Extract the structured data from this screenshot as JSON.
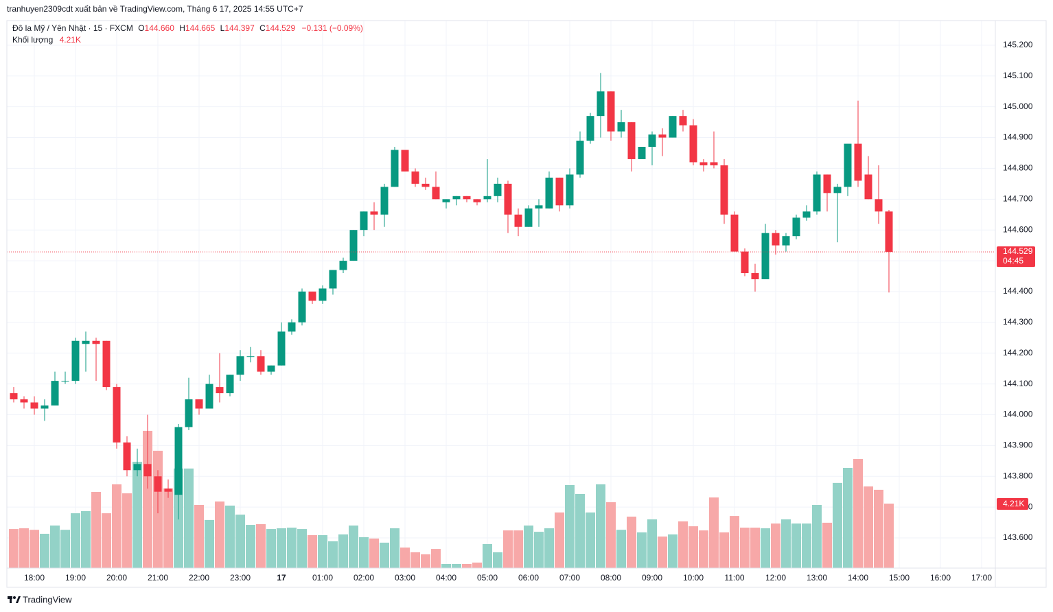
{
  "header": {
    "title": "tranhuyen2309cdt xuất bản về TradingView.com, Tháng 6 17, 2025 14:55 UTC+7",
    "symbol": "Đô la Mỹ / Yên Nhật · 15 · FXCM",
    "ohlc": [
      {
        "key": "O",
        "value": "144.660"
      },
      {
        "key": "H",
        "value": "144.665"
      },
      {
        "key": "L",
        "value": "144.397"
      },
      {
        "key": "C",
        "value": "144.529"
      }
    ],
    "change": "−0.131 (−0.09%)",
    "volume_title": "Khối lượng",
    "volume_value": "4.21K"
  },
  "footer": {
    "brand": "TradingView"
  },
  "chart_data": {
    "type": "candlestick",
    "x": [
      17.5,
      17.75,
      18,
      18.25,
      18.5,
      18.75,
      19,
      19.25,
      19.5,
      19.75,
      20,
      20.25,
      20.5,
      20.75,
      21,
      21.25,
      21.5,
      21.75,
      22,
      22.25,
      22.5,
      22.75,
      23,
      23.25,
      23.5,
      23.75,
      24,
      24.25,
      24.5,
      24.75,
      25,
      25.25,
      25.5,
      25.75,
      26,
      26.25,
      26.5,
      26.75,
      27,
      27.25,
      27.5,
      27.75,
      28,
      28.25,
      28.5,
      28.75,
      29,
      29.25,
      29.5,
      29.75,
      30,
      30.25,
      30.5,
      30.75,
      31,
      31.25,
      31.5,
      31.75,
      32,
      32.25,
      32.5,
      32.75,
      33,
      33.25,
      33.5,
      33.75,
      34,
      34.25,
      34.5,
      34.75,
      35,
      35.25,
      35.5,
      35.75,
      36,
      36.25,
      36.5,
      36.75,
      37,
      37.25,
      37.5,
      37.75,
      38,
      38.25,
      38.5,
      38.75
    ],
    "open": [
      144.07,
      144.05,
      144.04,
      144.02,
      144.03,
      144.11,
      144.11,
      144.23,
      144.24,
      144.24,
      144.09,
      143.91,
      143.82,
      143.84,
      143.8,
      143.76,
      143.74,
      143.96,
      144.05,
      144.02,
      144.09,
      144.07,
      144.13,
      144.19,
      144.19,
      144.14,
      144.16,
      144.27,
      144.3,
      144.4,
      144.37,
      144.41,
      144.47,
      144.5,
      144.6,
      144.66,
      144.65,
      144.74,
      144.86,
      144.79,
      144.75,
      144.74,
      144.69,
      144.7,
      144.71,
      144.7,
      144.7,
      144.71,
      144.75,
      144.65,
      144.61,
      144.67,
      144.67,
      144.77,
      144.68,
      144.78,
      144.89,
      144.97,
      145.05,
      144.92,
      144.95,
      144.83,
      144.87,
      144.91,
      144.9,
      144.97,
      144.94,
      144.82,
      144.82,
      144.81,
      144.65,
      144.53,
      144.46,
      144.44,
      144.59,
      144.55,
      144.58,
      144.64,
      144.66,
      144.78,
      144.72,
      144.74,
      144.88,
      144.78,
      144.7,
      144.66
    ],
    "high": [
      144.09,
      144.06,
      144.06,
      144.05,
      144.14,
      144.14,
      144.25,
      144.27,
      144.25,
      144.24,
      144.1,
      143.93,
      143.89,
      144.0,
      143.82,
      143.79,
      143.97,
      144.12,
      144.05,
      144.13,
      144.2,
      144.13,
      144.21,
      144.22,
      144.21,
      144.16,
      144.3,
      144.31,
      144.41,
      144.4,
      144.42,
      144.47,
      144.51,
      144.6,
      144.66,
      144.69,
      144.75,
      144.87,
      144.86,
      144.8,
      144.77,
      144.79,
      144.7,
      144.71,
      144.71,
      144.7,
      144.83,
      144.77,
      144.76,
      144.67,
      144.68,
      144.7,
      144.79,
      144.77,
      144.8,
      144.92,
      144.98,
      145.11,
      145.05,
      144.99,
      144.95,
      144.87,
      144.92,
      144.93,
      144.97,
      144.99,
      144.96,
      144.83,
      144.92,
      144.83,
      144.66,
      144.54,
      144.49,
      144.62,
      144.6,
      144.59,
      144.65,
      144.68,
      144.79,
      144.78,
      144.75,
      144.88,
      145.02,
      144.84,
      144.81,
      144.665
    ],
    "low": [
      144.04,
      144.02,
      144.0,
      143.98,
      144.03,
      144.1,
      144.1,
      144.14,
      144.11,
      144.08,
      143.89,
      143.8,
      143.8,
      143.76,
      143.68,
      143.73,
      143.66,
      143.95,
      144.0,
      144.02,
      144.04,
      144.06,
      144.11,
      144.17,
      144.13,
      144.13,
      144.16,
      144.26,
      144.29,
      144.36,
      144.36,
      144.39,
      144.46,
      144.5,
      144.58,
      144.6,
      144.61,
      144.74,
      144.79,
      144.74,
      144.73,
      144.7,
      144.67,
      144.68,
      144.69,
      144.68,
      144.69,
      144.69,
      144.59,
      144.58,
      144.61,
      144.61,
      144.67,
      144.66,
      144.67,
      144.77,
      144.88,
      144.9,
      144.89,
      144.9,
      144.79,
      144.83,
      144.81,
      144.84,
      144.9,
      144.92,
      144.81,
      144.79,
      144.8,
      144.62,
      144.53,
      144.45,
      144.4,
      144.44,
      144.52,
      144.53,
      144.57,
      144.63,
      144.65,
      144.66,
      144.56,
      144.71,
      144.74,
      144.7,
      144.62,
      144.397
    ],
    "close": [
      144.05,
      144.04,
      144.02,
      144.03,
      144.11,
      144.11,
      144.24,
      144.24,
      144.23,
      144.09,
      143.91,
      143.82,
      143.84,
      143.8,
      143.75,
      143.75,
      143.96,
      144.05,
      144.02,
      144.1,
      144.07,
      144.13,
      144.19,
      144.19,
      144.14,
      144.16,
      144.27,
      144.3,
      144.4,
      144.37,
      144.41,
      144.47,
      144.5,
      144.6,
      144.66,
      144.65,
      144.74,
      144.86,
      144.79,
      144.75,
      144.74,
      144.7,
      144.7,
      144.71,
      144.7,
      144.69,
      144.71,
      144.75,
      144.65,
      144.61,
      144.67,
      144.68,
      144.77,
      144.68,
      144.78,
      144.89,
      144.97,
      145.05,
      144.92,
      144.95,
      144.83,
      144.87,
      144.91,
      144.9,
      144.97,
      144.94,
      144.82,
      144.81,
      144.81,
      144.65,
      144.53,
      144.46,
      144.44,
      144.59,
      144.55,
      144.58,
      144.64,
      144.66,
      144.78,
      144.72,
      144.74,
      144.88,
      144.76,
      144.7,
      144.66,
      144.529
    ],
    "volume": [
      2550,
      2600,
      2500,
      2240,
      2780,
      2500,
      3580,
      3720,
      4970,
      3580,
      5470,
      4880,
      6940,
      8960,
      7660,
      5200,
      6500,
      6500,
      4120,
      3140,
      4350,
      4080,
      3490,
      2820,
      2870,
      2550,
      2600,
      2640,
      2550,
      2150,
      2150,
      1750,
      2200,
      2780,
      2020,
      1930,
      1660,
      2600,
      1340,
      1030,
      900,
      1250,
      270,
      270,
      270,
      360,
      1570,
      1030,
      2460,
      2460,
      2780,
      2370,
      2600,
      3630,
      5420,
      4840,
      3630,
      5470,
      4300,
      2500,
      3360,
      2330,
      3180,
      2060,
      2200,
      3050,
      2730,
      2460,
      4610,
      2330,
      3400,
      2640,
      2640,
      2600,
      2910,
      3180,
      2910,
      2910,
      4120,
      2960,
      5560,
      6540,
      7120,
      5330,
      5110,
      4210
    ],
    "xlim": [
      17.3333,
      41.3333
    ],
    "xticks": [
      {
        "value": 18,
        "label": "18:00"
      },
      {
        "value": 19,
        "label": "19:00"
      },
      {
        "value": 20,
        "label": "20:00"
      },
      {
        "value": 21,
        "label": "21:00"
      },
      {
        "value": 22,
        "label": "22:00"
      },
      {
        "value": 23,
        "label": "23:00"
      },
      {
        "value": 24,
        "label": "17"
      },
      {
        "value": 25,
        "label": "01:00"
      },
      {
        "value": 26,
        "label": "02:00"
      },
      {
        "value": 27,
        "label": "03:00"
      },
      {
        "value": 28,
        "label": "04:00"
      },
      {
        "value": 29,
        "label": "05:00"
      },
      {
        "value": 30,
        "label": "06:00"
      },
      {
        "value": 31,
        "label": "07:00"
      },
      {
        "value": 32,
        "label": "08:00"
      },
      {
        "value": 33,
        "label": "09:00"
      },
      {
        "value": 34,
        "label": "10:00"
      },
      {
        "value": 35,
        "label": "11:00"
      },
      {
        "value": 36,
        "label": "12:00"
      },
      {
        "value": 37,
        "label": "13:00"
      },
      {
        "value": 38,
        "label": "14:00"
      },
      {
        "value": 39,
        "label": "15:00"
      },
      {
        "value": 40,
        "label": "16:00"
      },
      {
        "value": 41,
        "label": "17:00"
      }
    ],
    "ylim": [
      143.502,
      145.28
    ],
    "yticks": [
      {
        "value": 143.6,
        "label": "143.600"
      },
      {
        "value": 143.7,
        "label": "143.700"
      },
      {
        "value": 143.8,
        "label": "143.800"
      },
      {
        "value": 143.9,
        "label": "143.900"
      },
      {
        "value": 144.0,
        "label": "144.000"
      },
      {
        "value": 144.1,
        "label": "144.100"
      },
      {
        "value": 144.2,
        "label": "144.200"
      },
      {
        "value": 144.3,
        "label": "144.300"
      },
      {
        "value": 144.4,
        "label": "144.400"
      },
      {
        "value": 144.5,
        "label": "144.500"
      },
      {
        "value": 144.6,
        "label": "144.600"
      },
      {
        "value": 144.7,
        "label": "144.700"
      },
      {
        "value": 144.8,
        "label": "144.800"
      },
      {
        "value": 144.9,
        "label": "144.900"
      },
      {
        "value": 145.0,
        "label": "145.000"
      },
      {
        "value": 145.1,
        "label": "145.100"
      },
      {
        "value": 145.2,
        "label": "145.200"
      }
    ],
    "y2lim": [
      0,
      35740
    ],
    "grid": true,
    "up_color": "#089981",
    "down_color": "#f23645",
    "volume_up_color": "#93d2c7",
    "volume_down_color": "#f7a8a8",
    "last_price_label": "144.529",
    "countdown": "04:45",
    "last_volume_label": "4.21K"
  }
}
